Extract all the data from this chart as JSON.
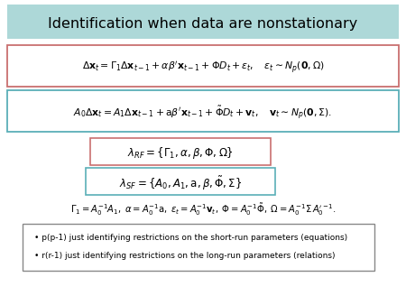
{
  "title": "Identification when data are nonstationary",
  "title_bg": "#add8d8",
  "eq1": "$\\Delta\\mathbf{x}_t = \\Gamma_1\\Delta\\mathbf{x}_{t-1} + \\alpha\\beta'\\mathbf{x}_{t-1} + \\Phi D_t + \\varepsilon_t, \\quad \\varepsilon_t \\sim N_p(\\mathbf{0}, \\Omega)$",
  "eq1_box_color": "#c97070",
  "eq2": "$A_0\\Delta\\mathbf{x}_t = A_1\\Delta\\mathbf{x}_{t-1} + \\mathrm{a}\\beta'\\mathbf{x}_{t-1} + \\tilde{\\Phi}D_t + \\mathbf{v}_t, \\quad \\mathbf{v}_t \\sim N_p(\\mathbf{0}, \\Sigma).$",
  "eq2_box_color": "#5aafb8",
  "lambda_rf": "$\\lambda_{RF} = \\{\\Gamma_1, \\alpha, \\beta, \\Phi, \\Omega\\}$",
  "lambda_rf_box_color": "#c97070",
  "lambda_sf": "$\\lambda_{SF} = \\{A_0, A_1, \\mathrm{a}, \\beta, \\tilde{\\Phi}, \\Sigma\\}$",
  "lambda_sf_box_color": "#5aafb8",
  "eq3": "$\\Gamma_1 = A_0^{-1}A_1, \\; \\alpha = A_0^{-1}\\mathrm{a}, \\; \\varepsilon_t = A_0^{-1}\\mathbf{v}_t, \\; \\Phi = A_0^{-1}\\tilde{\\Phi}, \\; \\Omega = A_0^{-1}\\Sigma\\, A_0'^{-1}.$",
  "bullet1": "p(p-1) just identifying restrictions on the short-run parameters (equations)",
  "bullet2": "r(r-1) just identifying restrictions on the long-run parameters (relations)",
  "bullet_box_color": "#888888"
}
